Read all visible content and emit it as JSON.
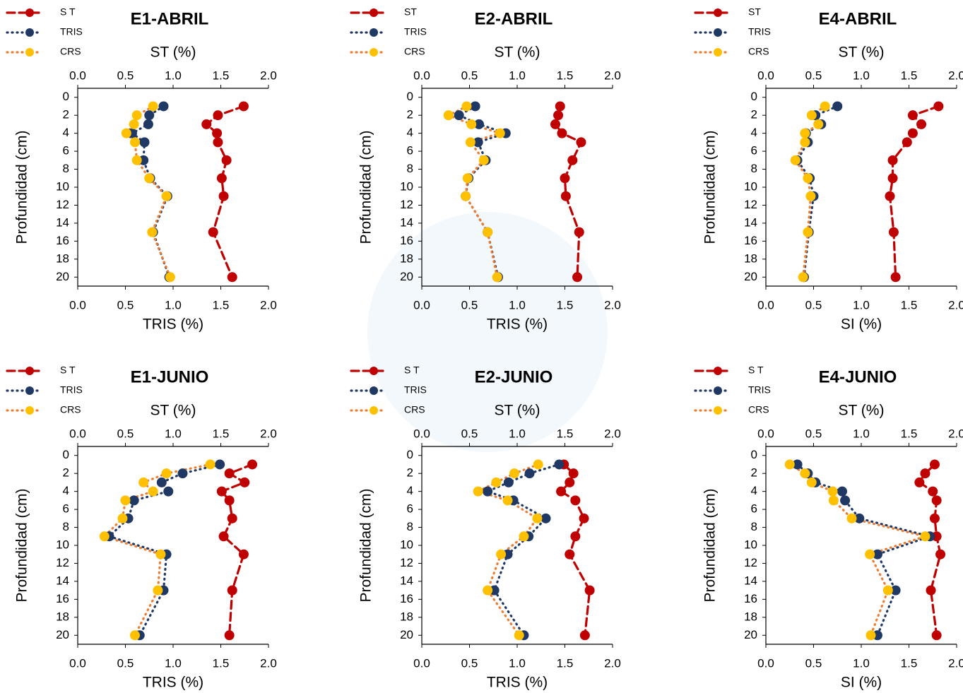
{
  "chart_data": [
    {
      "type": "line",
      "title": "E1-ABRIL",
      "top_axis_label": "ST (%)",
      "x_label": "TRIS (%)",
      "y_label": "Profundidad (cm)",
      "y": [
        1,
        2,
        3,
        4,
        5,
        7,
        9,
        11,
        15,
        20
      ],
      "series": [
        {
          "name": "S T",
          "color": "#c00000",
          "marker_color": "#c00000",
          "style": "dashed",
          "values": [
            1.74,
            1.47,
            1.35,
            1.46,
            1.47,
            1.56,
            1.51,
            1.53,
            1.42,
            1.62
          ]
        },
        {
          "name": "TRIS",
          "color": "#1f3864",
          "marker_color": "#1f3864",
          "style": "dotted",
          "values": [
            0.9,
            0.75,
            0.74,
            0.57,
            0.7,
            0.69,
            0.76,
            0.94,
            0.79,
            0.96
          ]
        },
        {
          "name": "CRS",
          "color": "#ed7d31",
          "marker_color": "#ffc000",
          "style": "dotted",
          "values": [
            0.79,
            0.62,
            0.59,
            0.51,
            0.6,
            0.62,
            0.75,
            0.93,
            0.78,
            0.97
          ]
        }
      ],
      "xlim": [
        0,
        2
      ],
      "xticks": [
        {
          "value": 0,
          "label": "0.0"
        },
        {
          "value": 0.5,
          "label": "0.5"
        },
        {
          "value": 1,
          "label": "1.0"
        },
        {
          "value": 1.5,
          "label": "1.5"
        },
        {
          "value": 2,
          "label": "2.0"
        }
      ],
      "ylim": [
        -1,
        21
      ],
      "yticks": [
        0,
        2,
        4,
        6,
        8,
        10,
        12,
        14,
        16,
        18,
        20
      ],
      "y_inverted": true
    },
    {
      "type": "line",
      "title": "E2-ABRIL",
      "top_axis_label": "ST (%)",
      "x_label": "TRIS (%)",
      "y_label": "Profundidad (cm)",
      "y": [
        1,
        2,
        3,
        4,
        5,
        7,
        9,
        11,
        15,
        20
      ],
      "series": [
        {
          "name": "ST",
          "color": "#c00000",
          "marker_color": "#c00000",
          "style": "dashed",
          "values": [
            1.45,
            1.43,
            1.4,
            1.47,
            1.67,
            1.58,
            1.5,
            1.51,
            1.65,
            1.63
          ]
        },
        {
          "name": "TRIS",
          "color": "#1f3864",
          "marker_color": "#1f3864",
          "style": "dotted",
          "values": [
            0.56,
            0.39,
            0.6,
            0.88,
            0.59,
            0.67,
            0.49,
            0.46,
            0.69,
            0.8
          ]
        },
        {
          "name": "CRS",
          "color": "#ed7d31",
          "marker_color": "#ffc000",
          "style": "dotted",
          "values": [
            0.47,
            0.28,
            0.52,
            0.82,
            0.51,
            0.65,
            0.48,
            0.46,
            0.69,
            0.79
          ]
        }
      ],
      "xlim": [
        0,
        2
      ],
      "xticks": [
        {
          "value": 0,
          "label": "0.0"
        },
        {
          "value": 0.5,
          "label": "0.5"
        },
        {
          "value": 1,
          "label": "1.0"
        },
        {
          "value": 1.5,
          "label": "1.5"
        },
        {
          "value": 2,
          "label": "2.0"
        }
      ],
      "ylim": [
        -1,
        21
      ],
      "yticks": [
        0,
        2,
        4,
        6,
        8,
        10,
        12,
        14,
        16,
        18,
        20
      ],
      "y_inverted": true
    },
    {
      "type": "line",
      "title": "E4-ABRIL",
      "top_axis_label": "ST (%)",
      "x_label": "SI (%)",
      "y_label": "Profundidad (cm)",
      "y": [
        1,
        2,
        3,
        4,
        5,
        7,
        9,
        11,
        15,
        20
      ],
      "series": [
        {
          "name": "ST",
          "color": "#c00000",
          "marker_color": "#c00000",
          "style": "dashed",
          "values": [
            1.81,
            1.54,
            1.63,
            1.54,
            1.48,
            1.33,
            1.33,
            1.3,
            1.34,
            1.36
          ]
        },
        {
          "name": "TRIS",
          "color": "#1f3864",
          "marker_color": "#1f3864",
          "style": "dotted",
          "values": [
            0.75,
            0.52,
            0.58,
            0.42,
            0.44,
            0.33,
            0.46,
            0.5,
            0.45,
            0.4
          ]
        },
        {
          "name": "CRS",
          "color": "#ed7d31",
          "marker_color": "#ffc000",
          "style": "dotted",
          "values": [
            0.62,
            0.48,
            0.55,
            0.41,
            0.41,
            0.31,
            0.44,
            0.47,
            0.44,
            0.39
          ]
        }
      ],
      "xlim": [
        0,
        2
      ],
      "xticks": [
        {
          "value": 0,
          "label": "0.0"
        },
        {
          "value": 0.5,
          "label": "0.5"
        },
        {
          "value": 1,
          "label": "1.0"
        },
        {
          "value": 1.5,
          "label": "1.5"
        },
        {
          "value": 2,
          "label": "2.0"
        }
      ],
      "ylim": [
        -1,
        21
      ],
      "yticks": [
        0,
        2,
        4,
        6,
        8,
        10,
        12,
        14,
        16,
        18,
        20
      ],
      "y_inverted": true
    },
    {
      "type": "line",
      "title": "E1-JUNIO",
      "top_axis_label": "ST (%)",
      "x_label": "TRIS (%)",
      "y_label": "Profundidad (cm)",
      "y": [
        1,
        2,
        3,
        4,
        5,
        7,
        9,
        11,
        15,
        20
      ],
      "series": [
        {
          "name": "S T",
          "color": "#c00000",
          "marker_color": "#c00000",
          "style": "dashed",
          "values": [
            1.83,
            1.59,
            1.75,
            1.51,
            1.59,
            1.62,
            1.53,
            1.74,
            1.62,
            1.59
          ]
        },
        {
          "name": "TRIS",
          "color": "#1f3864",
          "marker_color": "#1f3864",
          "style": "dotted",
          "values": [
            1.49,
            1.1,
            0.88,
            0.95,
            0.59,
            0.53,
            0.33,
            0.93,
            0.9,
            0.65
          ]
        },
        {
          "name": "CRS",
          "color": "#ed7d31",
          "marker_color": "#ffc000",
          "style": "dotted",
          "values": [
            1.39,
            0.93,
            0.69,
            0.79,
            0.5,
            0.47,
            0.28,
            0.87,
            0.84,
            0.6
          ]
        }
      ],
      "xlim": [
        0,
        2
      ],
      "xticks": [
        {
          "value": 0,
          "label": "0.0"
        },
        {
          "value": 0.5,
          "label": "0.5"
        },
        {
          "value": 1,
          "label": "1.0"
        },
        {
          "value": 1.5,
          "label": "1.5"
        },
        {
          "value": 2,
          "label": "2.0"
        }
      ],
      "ylim": [
        -1,
        21
      ],
      "yticks": [
        0,
        2,
        4,
        6,
        8,
        10,
        12,
        14,
        16,
        18,
        20
      ],
      "y_inverted": true
    },
    {
      "type": "line",
      "title": "E2-JUNIO",
      "top_axis_label": "ST (%)",
      "x_label": "TRIS (%)",
      "y_label": "Profundidad (cm)",
      "y": [
        1,
        2,
        3,
        4,
        5,
        7,
        9,
        11,
        15,
        20
      ],
      "series": [
        {
          "name": "S T",
          "color": "#c00000",
          "marker_color": "#c00000",
          "style": "dashed",
          "values": [
            1.49,
            1.59,
            1.55,
            1.46,
            1.61,
            1.7,
            1.61,
            1.55,
            1.76,
            1.71
          ]
        },
        {
          "name": "TRIS",
          "color": "#1f3864",
          "marker_color": "#1f3864",
          "style": "dotted",
          "values": [
            1.44,
            1.13,
            0.91,
            0.69,
            0.96,
            1.3,
            1.12,
            0.9,
            0.76,
            1.07
          ]
        },
        {
          "name": "CRS",
          "color": "#ed7d31",
          "marker_color": "#ffc000",
          "style": "dotted",
          "values": [
            1.22,
            0.97,
            0.78,
            0.59,
            0.9,
            1.21,
            1.07,
            0.83,
            0.69,
            1.02
          ]
        }
      ],
      "xlim": [
        0,
        2
      ],
      "xticks": [
        {
          "value": 0,
          "label": "0.0"
        },
        {
          "value": 0.5,
          "label": "0.5"
        },
        {
          "value": 1,
          "label": "1.0"
        },
        {
          "value": 1.5,
          "label": "1.5"
        },
        {
          "value": 2,
          "label": "2.0"
        }
      ],
      "ylim": [
        -1,
        21
      ],
      "yticks": [
        0,
        2,
        4,
        6,
        8,
        10,
        12,
        14,
        16,
        18,
        20
      ],
      "y_inverted": true
    },
    {
      "type": "line",
      "title": "E4-JUNIO",
      "top_axis_label": "ST (%)",
      "x_label": "SI (%)",
      "y_label": "Profundidad (cm)",
      "y": [
        1,
        2,
        3,
        4,
        5,
        7,
        9,
        11,
        15,
        20
      ],
      "series": [
        {
          "name": "S T",
          "color": "#c00000",
          "marker_color": "#c00000",
          "style": "dashed",
          "values": [
            1.77,
            1.67,
            1.61,
            1.75,
            1.79,
            1.77,
            1.79,
            1.83,
            1.73,
            1.79
          ]
        },
        {
          "name": "TRIS",
          "color": "#1f3864",
          "marker_color": "#1f3864",
          "style": "dotted",
          "values": [
            0.33,
            0.44,
            0.52,
            0.8,
            0.83,
            0.98,
            1.72,
            1.17,
            1.36,
            1.17
          ]
        },
        {
          "name": "CRS",
          "color": "#ed7d31",
          "marker_color": "#ffc000",
          "style": "dotted",
          "values": [
            0.25,
            0.41,
            0.48,
            0.7,
            0.71,
            0.9,
            1.67,
            1.09,
            1.28,
            1.1
          ]
        }
      ],
      "xlim": [
        0,
        2
      ],
      "xticks": [
        {
          "value": 0,
          "label": "0.0"
        },
        {
          "value": 0.5,
          "label": "0.5"
        },
        {
          "value": 1,
          "label": "1.0"
        },
        {
          "value": 1.5,
          "label": "1.5"
        },
        {
          "value": 2,
          "label": "2.0"
        }
      ],
      "ylim": [
        -1,
        21
      ],
      "yticks": [
        0,
        2,
        4,
        6,
        8,
        10,
        12,
        14,
        16,
        18,
        20
      ],
      "y_inverted": true
    }
  ]
}
